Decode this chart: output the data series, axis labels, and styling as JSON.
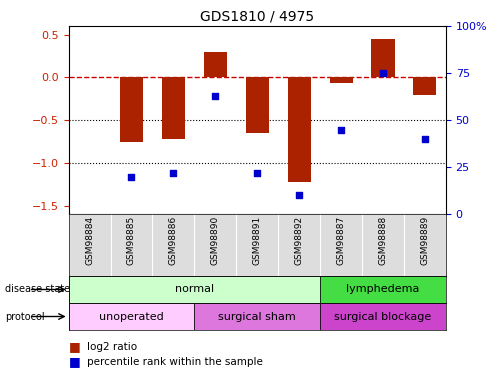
{
  "title": "GDS1810 / 4975",
  "samples": [
    "GSM98884",
    "GSM98885",
    "GSM98886",
    "GSM98890",
    "GSM98891",
    "GSM98892",
    "GSM98887",
    "GSM98888",
    "GSM98889"
  ],
  "log2_ratio": [
    0.0,
    -0.75,
    -0.72,
    0.3,
    -0.65,
    -1.22,
    -0.07,
    0.45,
    -0.2
  ],
  "percentile_rank": [
    null,
    20,
    22,
    63,
    22,
    10,
    45,
    75,
    40
  ],
  "ylim_left": [
    -1.6,
    0.6
  ],
  "ylim_right": [
    0,
    100
  ],
  "yticks_left": [
    -1.5,
    -1.0,
    -0.5,
    0.0,
    0.5
  ],
  "yticks_right": [
    0,
    25,
    50,
    75,
    100
  ],
  "bar_color": "#aa2200",
  "dot_color": "#0000cc",
  "hline_color": "#cc0000",
  "disease_state_groups": [
    {
      "label": "normal",
      "start": 0,
      "end": 6,
      "color": "#ccffcc"
    },
    {
      "label": "lymphedema",
      "start": 6,
      "end": 9,
      "color": "#44dd44"
    }
  ],
  "protocol_groups": [
    {
      "label": "unoperated",
      "start": 0,
      "end": 3,
      "color": "#ffccff"
    },
    {
      "label": "surgical sham",
      "start": 3,
      "end": 6,
      "color": "#dd77dd"
    },
    {
      "label": "surgical blockage",
      "start": 6,
      "end": 9,
      "color": "#cc44cc"
    }
  ],
  "legend_log2_color": "#aa2200",
  "legend_pct_color": "#0000cc"
}
